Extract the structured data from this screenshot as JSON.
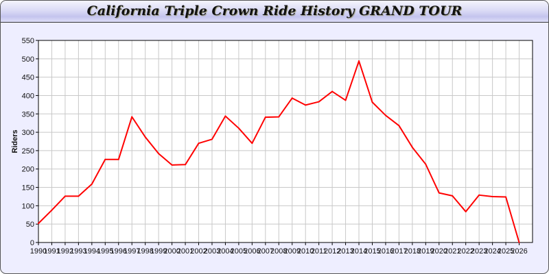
{
  "chart_data": {
    "type": "line",
    "title": "California Triple Crown Ride History GRAND TOUR",
    "xlabel": "",
    "ylabel": "Riders",
    "xlim": [
      1990,
      2027
    ],
    "ylim": [
      0,
      550
    ],
    "yticks": [
      0,
      50,
      100,
      150,
      200,
      250,
      300,
      350,
      400,
      450,
      500,
      550
    ],
    "grid": true,
    "line_color": "#ff0000",
    "x": [
      1990,
      1991,
      1992,
      1993,
      1994,
      1995,
      1996,
      1997,
      1998,
      1999,
      2000,
      2001,
      2002,
      2003,
      2004,
      2005,
      2006,
      2007,
      2008,
      2009,
      2010,
      2011,
      2012,
      2013,
      2014,
      2015,
      2016,
      2017,
      2018,
      2019,
      2020,
      2021,
      2022,
      2023,
      2024,
      2025,
      2026
    ],
    "values": [
      52,
      88,
      126,
      126,
      159,
      226,
      226,
      342,
      287,
      242,
      211,
      212,
      270,
      281,
      344,
      311,
      270,
      341,
      342,
      393,
      374,
      383,
      411,
      387,
      494,
      382,
      346,
      318,
      259,
      213,
      135,
      127,
      84,
      129,
      125,
      124,
      0
    ]
  }
}
